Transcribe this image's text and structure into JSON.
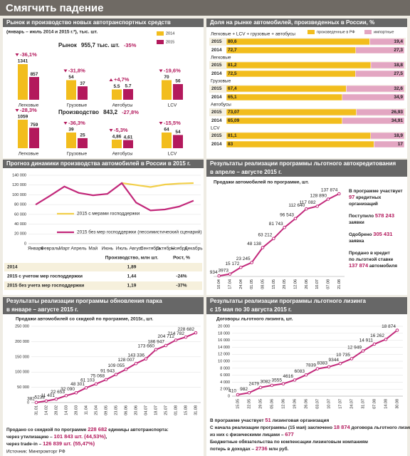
{
  "title": "Смягчить падение",
  "chart_data": [
    {
      "type": "grouped_bar",
      "title": "Рынок и производство новых автотранспортных средств",
      "subtitle": "(январь – июль 2014 и 2015 г.*), тыс. шт.",
      "series": [
        {
          "name": "2014",
          "color": "#f2bd1d"
        },
        {
          "name": "2015",
          "color": "#b3195c"
        }
      ],
      "rows": [
        {
          "label": "Рынок",
          "total": "955,7 тыс. шт.",
          "change": "-35%",
          "groups": [
            {
              "category": "Легковые",
              "values": [
                1341,
                857
              ],
              "change": "-36,1%"
            },
            {
              "category": "Грузовые",
              "values": [
                54,
                37
              ],
              "change": "-31,8%"
            },
            {
              "category": "Автобусы",
              "values": [
                5.5,
                5.7
              ],
              "change": "+4,7%"
            },
            {
              "category": "LCV",
              "values": [
                70,
                56
              ],
              "change": "-19,6%"
            }
          ]
        },
        {
          "label": "Производство",
          "total": "843,2",
          "change": "-27,8%",
          "groups": [
            {
              "category": "Легковые",
              "values": [
                1059,
                759
              ],
              "change": "-28,3%"
            },
            {
              "category": "Грузовые",
              "values": [
                39,
                25
              ],
              "change": "-36,3%"
            },
            {
              "category": "Автобусы",
              "values": [
                4.86,
                4.61
              ],
              "value_labels": [
                "4,86",
                "4,61"
              ],
              "change": "-5,3%"
            },
            {
              "category": "LCV",
              "values": [
                64,
                54
              ],
              "change": "-15,5%"
            }
          ]
        }
      ]
    },
    {
      "type": "stacked_bar",
      "title": "Доля на рынке автомобилей, произведенных в России, %",
      "series": [
        {
          "name": "произведенные в РФ",
          "color": "#f2bd1d"
        },
        {
          "name": "импортные",
          "color": "#e3a6c2"
        }
      ],
      "groups": [
        {
          "label": "Легковые + LCV + грузовые + автобусы",
          "rows": [
            {
              "year": "2015",
              "values": [
                80.6,
                19.4
              ],
              "value_labels": [
                "80,6",
                "19,4"
              ]
            },
            {
              "year": "2014",
              "values": [
                72.7,
                27.3
              ],
              "value_labels": [
                "72,7",
                "27,3"
              ]
            }
          ]
        },
        {
          "label": "Легковые",
          "rows": [
            {
              "year": "2015",
              "values": [
                81.2,
                18.8
              ],
              "value_labels": [
                "81,2",
                "18,8"
              ]
            },
            {
              "year": "2014",
              "values": [
                72.5,
                27.5
              ],
              "value_labels": [
                "72,5",
                "27,5"
              ]
            }
          ]
        },
        {
          "label": "Грузовые",
          "rows": [
            {
              "year": "2015",
              "values": [
                67.4,
                32.6
              ],
              "value_labels": [
                "67,4",
                "32,6"
              ]
            },
            {
              "year": "2014",
              "values": [
                65.1,
                34.9
              ],
              "value_labels": [
                "65,1",
                "34,9"
              ]
            }
          ]
        },
        {
          "label": "Автобусы",
          "rows": [
            {
              "year": "2015",
              "values": [
                73.07,
                26.93
              ],
              "value_labels": [
                "73,07",
                "26,93"
              ]
            },
            {
              "year": "2014",
              "values": [
                65.09,
                34.91
              ],
              "value_labels": [
                "65,09",
                "34,91"
              ]
            }
          ]
        },
        {
          "label": "LCV",
          "rows": [
            {
              "year": "2015",
              "values": [
                81.1,
                18.9
              ],
              "value_labels": [
                "81,1",
                "18,9"
              ]
            },
            {
              "year": "2014",
              "values": [
                83,
                17
              ]
            }
          ]
        }
      ]
    },
    {
      "type": "line",
      "title": [
        "Прогноз динамики производства автомобилей в России в 2015 г."
      ],
      "categories": [
        "Январь",
        "Февраль",
        "Март",
        "Апрель",
        "Май",
        "Июнь",
        "Июль",
        "Август",
        "Сентябрь",
        "Октябрь",
        "Ноябрь",
        "Декабрь"
      ],
      "series": [
        {
          "name": "2015 с мерами господдержки",
          "color": "#f2cf4a",
          "values": [
            null,
            null,
            null,
            null,
            null,
            null,
            124000,
            120000,
            116000,
            121000,
            123000,
            124000
          ]
        },
        {
          "name": "2015 без мер господдержки (пессимистический сценарий)",
          "color": "#c2287a",
          "values": [
            80000,
            98000,
            117000,
            104000,
            99000,
            102000,
            124000,
            84000,
            68000,
            70000,
            76000,
            88000
          ]
        }
      ],
      "ylim": [
        0,
        140000
      ],
      "yticks": [
        0,
        {
          "value": 20000,
          "label": "20 000"
        },
        {
          "value": 40000,
          "label": "40 000"
        },
        {
          "value": 60000,
          "label": "60 000"
        },
        {
          "value": 80000,
          "label": "80 000"
        },
        {
          "value": 100000,
          "label": "100 000"
        },
        {
          "value": 120000,
          "label": "120 000"
        },
        {
          "value": 140000,
          "label": "140 000"
        }
      ],
      "grid": true
    },
    {
      "type": "line",
      "title": [
        "Результаты реализации программы льготного автокредитования",
        "в апреле – августе 2015 г."
      ],
      "subtitle": "Продажи автомобилей по программе, шт.",
      "color": "#c2287a",
      "categories": [
        "10.04",
        "17.04",
        "24.04",
        "01.05",
        "08.05",
        "15.05",
        "29.05",
        "12.06",
        "26.06",
        "10.07",
        "07.08",
        "21.08"
      ],
      "values": [
        934,
        3973,
        15172,
        23245,
        48138,
        63212,
        81743,
        96543,
        112640,
        117082,
        128890,
        137874
      ],
      "value_labels": [
        "934",
        "3973",
        "15 172",
        "23 245",
        "48 138",
        "63 212",
        "81 743",
        "96 543",
        "112 640",
        "117 082",
        "128 890",
        "137 874"
      ],
      "notes": [
        [
          [
            "В программе участвует"
          ],
          [
            {
              "em": "97"
            },
            " кредитных"
          ],
          [
            "организаций"
          ]
        ],
        [
          [
            "Поступило ",
            {
              "em": "578 243"
            }
          ],
          [
            "заявки"
          ]
        ],
        [
          [
            "Одобрено ",
            {
              "em": "305 431"
            }
          ],
          [
            "заявка"
          ]
        ],
        [
          [
            "Продано в кредит"
          ],
          [
            "по льготной ставке"
          ],
          [
            {
              "em": "137 874"
            },
            " автомобиля"
          ]
        ]
      ]
    },
    {
      "type": "line",
      "title": [
        "Результаты реализации программы обновления парка",
        "в январе – августе 2015 г."
      ],
      "subtitle": "Продажи автомобилей со скидкой по программе, 2015г., шт.",
      "color": "#c2287a",
      "categories": [
        "31.01",
        "14.02",
        "28.02",
        "14.03",
        "28.03",
        "11.04",
        "25.04",
        "09.05",
        "23.05",
        "06.06",
        "20.06",
        "04.07",
        "18.07",
        "25.07",
        "01.08",
        "15.08",
        "31.08"
      ],
      "values": [
        382,
        5238,
        11401,
        22653,
        32090,
        48301,
        61103,
        75068,
        91943,
        109055,
        128007,
        143336,
        173660,
        186947,
        204712,
        214782,
        228682
      ],
      "value_labels": [
        "382",
        "5238",
        "11 401",
        "22 653",
        "32 090",
        "48 301",
        "61 103",
        "75 068",
        "91 943",
        "109 055",
        "128 007",
        "143 336",
        "173 660",
        "186 947",
        "204 712",
        "214 782",
        "228 682"
      ],
      "ylim": [
        0,
        250000
      ],
      "yticks": [
        0,
        {
          "value": 50000,
          "label": "50 000"
        },
        {
          "value": 100000,
          "label": "100 000"
        },
        {
          "value": 150000,
          "label": "150 000"
        },
        {
          "value": 200000,
          "label": "200 000"
        },
        {
          "value": 250000,
          "label": "250 000"
        }
      ],
      "grid": true,
      "notes": [
        [
          "Продано со скидкой по программе ",
          {
            "em": "228 682"
          },
          " единицы автотранспорта:"
        ],
        [
          "через утилизацию – ",
          {
            "em": "101 843 шт. (44,53%)"
          },
          ","
        ],
        [
          "через trade-in – ",
          {
            "em": "126 839 шт. (55,47%)"
          }
        ]
      ],
      "source": "Источник: Минпромторг РФ"
    },
    {
      "type": "line",
      "title": [
        "Результаты реализации программы льготного лизинга",
        "с 15 мая по 30 августа 2015 г."
      ],
      "subtitle": "Договоры льготного лизинга, шт.",
      "color": "#c2287a",
      "categories": [
        "15.05",
        "22.05",
        "29.05",
        "05.06",
        "12.06",
        "19.06",
        "26.06",
        "03.07",
        "10.07",
        "17.07",
        "24.07",
        "31.07",
        "07.08",
        "14.08",
        "30.08"
      ],
      "values": [
        410,
        982,
        2479,
        3082,
        3555,
        4616,
        6083,
        7839,
        8383,
        9344,
        10735,
        12949,
        14911,
        16262,
        18874
      ],
      "value_labels": [
        "410",
        "982",
        "2479",
        "3082",
        "3555",
        "4616",
        "6083",
        "7839",
        "8383",
        "9344",
        "10 735",
        "12 949",
        "14 911",
        "16 262",
        "18 874"
      ],
      "ylim": [
        0,
        20000
      ],
      "yticks": [
        0,
        {
          "value": 2000,
          "label": "2 000"
        },
        {
          "value": 4000,
          "label": "4 000"
        },
        {
          "value": 6000,
          "label": "6 000"
        },
        {
          "value": 8000,
          "label": "8 000"
        },
        {
          "value": 10000,
          "label": "10 000"
        },
        {
          "value": 12000,
          "label": "12 000"
        },
        {
          "value": 14000,
          "label": "14 000"
        },
        {
          "value": 16000,
          "label": "16 000"
        },
        {
          "value": 18000,
          "label": "18 000"
        },
        {
          "value": 20000,
          "label": "20 000"
        }
      ],
      "grid": true,
      "notes": [
        [
          "В программе участвует ",
          {
            "em": "51"
          },
          " лизинговая организация"
        ],
        [
          "С начала реализации программы (15 мая) заключено ",
          {
            "em": "18 874"
          },
          " договора льготного лизинга,"
        ],
        [
          "из них с физическими лицами – ",
          {
            "em": "677"
          }
        ],
        [
          "Бюджетные обязательства по компенсации лизинговым компаниям"
        ],
        [
          "потерь в доходах – ",
          {
            "em": "2736"
          },
          " млн руб."
        ]
      ]
    }
  ],
  "table": {
    "columns": [
      "Производство, млн шт.",
      "Рост, %"
    ],
    "rows": [
      {
        "label": "2014",
        "values": [
          "1,89"
        ]
      },
      {
        "label": "2015 с учетом мер господдержки",
        "values": [
          "1,44",
          "-24%"
        ]
      },
      {
        "label": "2015 без учета мер господдержки",
        "values": [
          "1,19",
          "-37%"
        ]
      }
    ]
  }
}
